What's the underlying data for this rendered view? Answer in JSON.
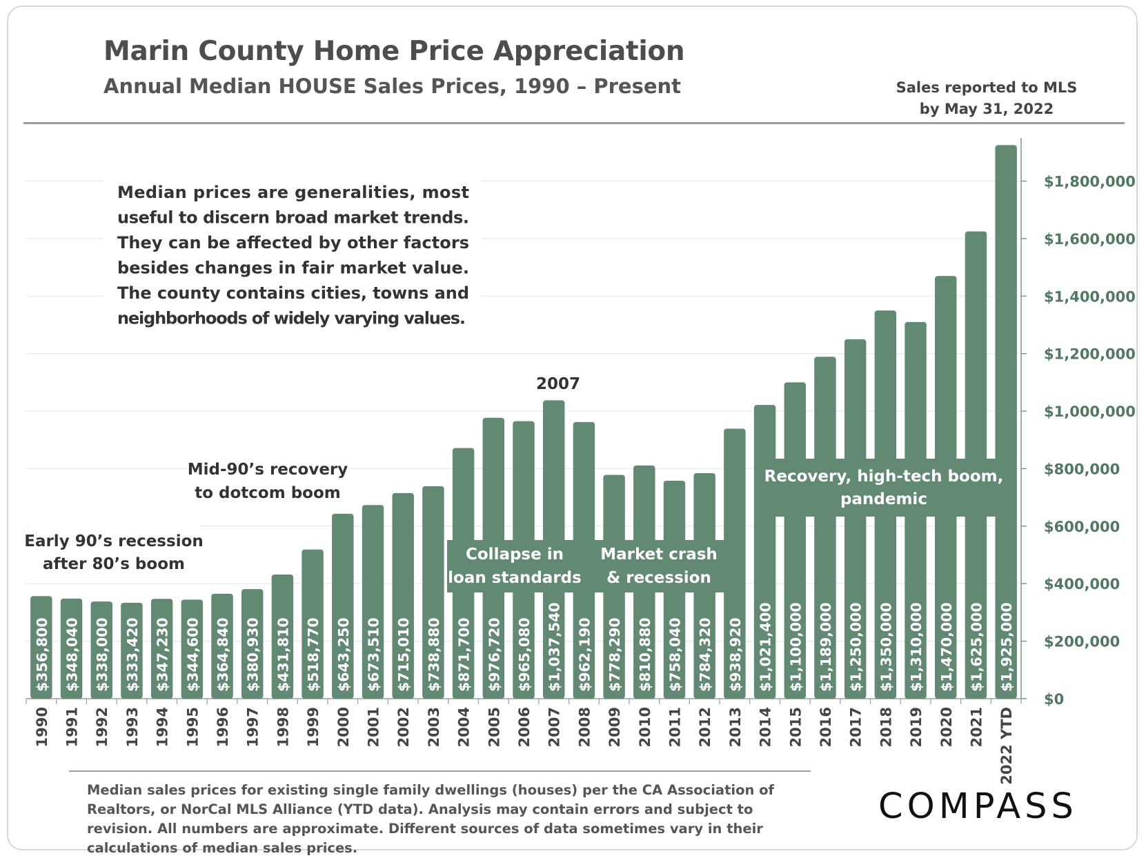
{
  "header": {
    "title": "Marin County Home Price Appreciation",
    "subtitle": "Annual Median HOUSE Sales Prices, 1990 – Present",
    "note_line1": "Sales reported to MLS",
    "note_line2": "by May 31, 2022"
  },
  "footer": {
    "disclaimer": "Median sales prices for existing single family dwellings (houses) per the CA Association of Realtors, or NorCal MLS Alliance (YTD data). Analysis may contain errors and subject to revision. All numbers are approximate. Different sources of data sometimes vary in their calculations of median sales prices.",
    "logo": "COMPASS"
  },
  "colors": {
    "bar": "#628a72",
    "axis_label": "#4f7a5e",
    "annotation_text": "#333333",
    "box_text": "#ffffff"
  },
  "chart_data": {
    "type": "bar",
    "categories": [
      "1990",
      "1991",
      "1992",
      "1993",
      "1994",
      "1995",
      "1996",
      "1997",
      "1998",
      "1999",
      "2000",
      "2001",
      "2002",
      "2003",
      "2004",
      "2005",
      "2006",
      "2007",
      "2008",
      "2009",
      "2010",
      "2011",
      "2012",
      "2013",
      "2014",
      "2015",
      "2016",
      "2017",
      "2018",
      "2019",
      "2020",
      "2021",
      "2022 YTD"
    ],
    "values": [
      356800,
      348040,
      338000,
      333420,
      347230,
      344600,
      364840,
      380930,
      431810,
      518770,
      643250,
      673510,
      715010,
      738880,
      871700,
      976720,
      965080,
      1037540,
      962190,
      778290,
      810880,
      758040,
      784320,
      938920,
      1021400,
      1100000,
      1189000,
      1250000,
      1350000,
      1310000,
      1470000,
      1625000,
      1925000
    ],
    "data_labels": [
      "$356,800",
      "$348,040",
      "$338,000",
      "$333,420",
      "$347,230",
      "$344,600",
      "$364,840",
      "$380,930",
      "$431,810",
      "$518,770",
      "$643,250",
      "$673,510",
      "$715,010",
      "$738,880",
      "$871,700",
      "$976,720",
      "$965,080",
      "$1,037,540",
      "$962,190",
      "$778,290",
      "$810,880",
      "$758,040",
      "$784,320",
      "$938,920",
      "$1,021,400",
      "$1,100,000",
      "$1,189,000",
      "$1,250,000",
      "$1,350,000",
      "$1,310,000",
      "$1,470,000",
      "$1,625,000",
      "$1,925,000"
    ],
    "ylim": [
      0,
      1950000
    ],
    "yticks": [
      0,
      200000,
      400000,
      600000,
      800000,
      1000000,
      1200000,
      1400000,
      1600000,
      1800000
    ],
    "ytick_labels": [
      "$0",
      "$200,000",
      "$400,000",
      "$600,000",
      "$800,000",
      "$1,000,000",
      "$1,200,000",
      "$1,400,000",
      "$1,600,000",
      "$1,800,000"
    ],
    "y_axis_side": "right",
    "grid": true,
    "annotations": {
      "median_note": [
        "Median prices are generalities, most",
        "useful to discern broad market trends.",
        "They can be affected by other factors",
        "besides changes in fair market value.",
        "The county contains cities, towns and",
        "neighborhoods of widely varying values."
      ],
      "early90s": [
        "Early 90’s recession",
        "after 80’s boom"
      ],
      "mid90s": [
        "Mid-90’s recovery",
        "to dotcom boom"
      ],
      "peak_label": "2007",
      "collapse": [
        "Collapse in",
        "loan standards"
      ],
      "crash": [
        "Market crash",
        "& recession"
      ],
      "recovery": [
        "Recovery, high-tech boom,",
        "pandemic"
      ]
    }
  }
}
